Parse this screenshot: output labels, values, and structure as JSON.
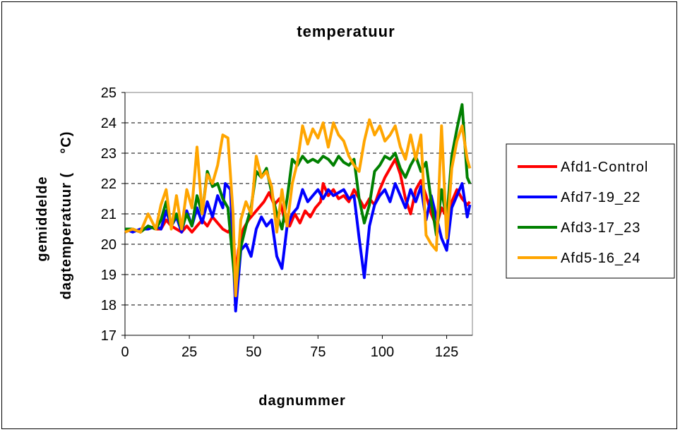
{
  "chart_data": {
    "type": "line",
    "title": "temperatuur",
    "xlabel": "dagnummer",
    "ylabel_line1": "gemiddelde",
    "ylabel_line2": "dagtemperatuur (    °C)",
    "xlim": [
      0,
      135
    ],
    "ylim": [
      17,
      25
    ],
    "xticks": [
      0,
      25,
      50,
      75,
      100,
      125
    ],
    "yticks": [
      17,
      18,
      19,
      20,
      21,
      22,
      23,
      24,
      25
    ],
    "grid": "horizontal dashed",
    "legend_position": "right",
    "series": [
      {
        "name": "Afd1-Control",
        "color": "#ff0000",
        "points": [
          [
            0,
            20.4
          ],
          [
            3,
            20.5
          ],
          [
            6,
            20.4
          ],
          [
            9,
            20.6
          ],
          [
            12,
            20.5
          ],
          [
            14,
            20.5
          ],
          [
            16,
            20.8
          ],
          [
            18,
            20.6
          ],
          [
            20,
            20.5
          ],
          [
            22,
            20.4
          ],
          [
            24,
            20.6
          ],
          [
            26,
            20.4
          ],
          [
            28,
            20.6
          ],
          [
            30,
            20.8
          ],
          [
            32,
            20.6
          ],
          [
            34,
            20.9
          ],
          [
            36,
            20.7
          ],
          [
            38,
            20.5
          ],
          [
            40,
            20.4
          ],
          [
            42,
            20.6
          ],
          [
            43,
            18.9
          ],
          [
            44,
            19.8
          ],
          [
            46,
            20.5
          ],
          [
            48,
            20.8
          ],
          [
            50,
            21.0
          ],
          [
            52,
            21.2
          ],
          [
            54,
            21.4
          ],
          [
            56,
            21.7
          ],
          [
            58,
            21.3
          ],
          [
            60,
            21.5
          ],
          [
            62,
            20.8
          ],
          [
            64,
            20.6
          ],
          [
            66,
            21.0
          ],
          [
            68,
            20.7
          ],
          [
            70,
            21.1
          ],
          [
            72,
            20.9
          ],
          [
            74,
            21.2
          ],
          [
            76,
            21.4
          ],
          [
            77,
            22.0
          ],
          [
            79,
            21.6
          ],
          [
            81,
            21.8
          ],
          [
            83,
            21.5
          ],
          [
            85,
            21.6
          ],
          [
            87,
            21.4
          ],
          [
            89,
            21.8
          ],
          [
            91,
            21.5
          ],
          [
            93,
            21.2
          ],
          [
            95,
            21.5
          ],
          [
            97,
            21.3
          ],
          [
            99,
            21.8
          ],
          [
            101,
            22.2
          ],
          [
            103,
            22.5
          ],
          [
            105,
            22.8
          ],
          [
            107,
            22.3
          ],
          [
            109,
            21.5
          ],
          [
            111,
            21.0
          ],
          [
            113,
            21.8
          ],
          [
            115,
            22.1
          ],
          [
            117,
            21.6
          ],
          [
            119,
            21.0
          ],
          [
            121,
            20.6
          ],
          [
            123,
            21.2
          ],
          [
            125,
            20.9
          ],
          [
            127,
            21.4
          ],
          [
            129,
            21.8
          ],
          [
            131,
            21.5
          ],
          [
            133,
            21.3
          ],
          [
            134,
            21.4
          ]
        ]
      },
      {
        "name": "Afd7-19_22",
        "color": "#0000ff",
        "points": [
          [
            0,
            20.5
          ],
          [
            3,
            20.4
          ],
          [
            6,
            20.5
          ],
          [
            9,
            20.5
          ],
          [
            12,
            20.6
          ],
          [
            14,
            20.5
          ],
          [
            16,
            21.1
          ],
          [
            18,
            20.6
          ],
          [
            20,
            20.9
          ],
          [
            22,
            20.4
          ],
          [
            24,
            21.1
          ],
          [
            26,
            20.6
          ],
          [
            28,
            21.2
          ],
          [
            30,
            20.7
          ],
          [
            32,
            21.4
          ],
          [
            34,
            20.9
          ],
          [
            36,
            21.6
          ],
          [
            38,
            21.2
          ],
          [
            39,
            22.0
          ],
          [
            41,
            21.8
          ],
          [
            43,
            17.8
          ],
          [
            45,
            19.8
          ],
          [
            47,
            20.0
          ],
          [
            49,
            19.6
          ],
          [
            51,
            20.5
          ],
          [
            53,
            20.9
          ],
          [
            55,
            20.6
          ],
          [
            57,
            20.8
          ],
          [
            59,
            19.6
          ],
          [
            61,
            19.2
          ],
          [
            63,
            20.6
          ],
          [
            65,
            21.0
          ],
          [
            67,
            21.2
          ],
          [
            69,
            21.8
          ],
          [
            71,
            21.4
          ],
          [
            73,
            21.6
          ],
          [
            75,
            21.8
          ],
          [
            77,
            21.5
          ],
          [
            79,
            21.8
          ],
          [
            81,
            21.6
          ],
          [
            83,
            21.7
          ],
          [
            85,
            21.8
          ],
          [
            87,
            21.5
          ],
          [
            89,
            21.6
          ],
          [
            91,
            20.2
          ],
          [
            93,
            18.9
          ],
          [
            95,
            20.6
          ],
          [
            97,
            21.3
          ],
          [
            99,
            21.6
          ],
          [
            101,
            21.8
          ],
          [
            103,
            21.4
          ],
          [
            105,
            22.0
          ],
          [
            107,
            21.6
          ],
          [
            109,
            21.2
          ],
          [
            111,
            21.8
          ],
          [
            113,
            21.4
          ],
          [
            115,
            21.9
          ],
          [
            117,
            20.8
          ],
          [
            119,
            21.6
          ],
          [
            121,
            20.9
          ],
          [
            123,
            20.2
          ],
          [
            125,
            19.8
          ],
          [
            127,
            21.2
          ],
          [
            129,
            21.6
          ],
          [
            131,
            22.0
          ],
          [
            133,
            20.9
          ],
          [
            134,
            21.3
          ]
        ]
      },
      {
        "name": "Afd3-17_23",
        "color": "#008000",
        "points": [
          [
            0,
            20.5
          ],
          [
            3,
            20.5
          ],
          [
            6,
            20.4
          ],
          [
            9,
            20.6
          ],
          [
            12,
            20.5
          ],
          [
            14,
            20.8
          ],
          [
            16,
            21.4
          ],
          [
            18,
            20.6
          ],
          [
            20,
            21.0
          ],
          [
            22,
            20.5
          ],
          [
            24,
            21.0
          ],
          [
            26,
            20.6
          ],
          [
            28,
            21.6
          ],
          [
            30,
            21.0
          ],
          [
            32,
            22.4
          ],
          [
            34,
            21.9
          ],
          [
            36,
            22.0
          ],
          [
            38,
            21.5
          ],
          [
            40,
            21.2
          ],
          [
            43,
            18.5
          ],
          [
            45,
            19.9
          ],
          [
            47,
            20.6
          ],
          [
            49,
            21.2
          ],
          [
            51,
            22.4
          ],
          [
            53,
            22.2
          ],
          [
            55,
            22.5
          ],
          [
            57,
            21.7
          ],
          [
            59,
            21.0
          ],
          [
            61,
            20.5
          ],
          [
            63,
            21.5
          ],
          [
            65,
            22.8
          ],
          [
            67,
            22.6
          ],
          [
            69,
            22.9
          ],
          [
            71,
            22.7
          ],
          [
            73,
            22.8
          ],
          [
            75,
            22.7
          ],
          [
            77,
            22.9
          ],
          [
            79,
            22.8
          ],
          [
            81,
            22.6
          ],
          [
            83,
            22.9
          ],
          [
            85,
            22.7
          ],
          [
            87,
            22.6
          ],
          [
            89,
            22.8
          ],
          [
            91,
            21.5
          ],
          [
            93,
            20.7
          ],
          [
            95,
            21.3
          ],
          [
            97,
            22.4
          ],
          [
            99,
            22.6
          ],
          [
            101,
            22.9
          ],
          [
            103,
            22.8
          ],
          [
            105,
            23.0
          ],
          [
            107,
            22.5
          ],
          [
            109,
            22.2
          ],
          [
            111,
            22.6
          ],
          [
            113,
            22.9
          ],
          [
            115,
            22.4
          ],
          [
            117,
            22.7
          ],
          [
            119,
            21.4
          ],
          [
            121,
            20.3
          ],
          [
            123,
            21.8
          ],
          [
            125,
            20.8
          ],
          [
            127,
            22.9
          ],
          [
            129,
            23.8
          ],
          [
            131,
            24.6
          ],
          [
            133,
            22.2
          ],
          [
            134,
            22.0
          ]
        ]
      },
      {
        "name": "Afd5-16_24",
        "color": "#ffa500",
        "points": [
          [
            0,
            20.4
          ],
          [
            3,
            20.5
          ],
          [
            6,
            20.4
          ],
          [
            9,
            21.0
          ],
          [
            12,
            20.5
          ],
          [
            14,
            21.3
          ],
          [
            16,
            21.8
          ],
          [
            18,
            20.5
          ],
          [
            20,
            21.6
          ],
          [
            22,
            20.5
          ],
          [
            24,
            21.8
          ],
          [
            26,
            21.2
          ],
          [
            28,
            23.2
          ],
          [
            30,
            21.0
          ],
          [
            32,
            22.3
          ],
          [
            34,
            22.0
          ],
          [
            36,
            22.6
          ],
          [
            38,
            23.6
          ],
          [
            40,
            23.5
          ],
          [
            42,
            21.0
          ],
          [
            43,
            18.3
          ],
          [
            45,
            20.8
          ],
          [
            47,
            21.4
          ],
          [
            49,
            21.0
          ],
          [
            51,
            22.9
          ],
          [
            53,
            22.2
          ],
          [
            55,
            22.4
          ],
          [
            57,
            21.9
          ],
          [
            59,
            20.4
          ],
          [
            61,
            21.8
          ],
          [
            63,
            20.6
          ],
          [
            65,
            22.0
          ],
          [
            67,
            22.7
          ],
          [
            69,
            23.9
          ],
          [
            71,
            23.3
          ],
          [
            73,
            23.8
          ],
          [
            75,
            23.5
          ],
          [
            77,
            24.0
          ],
          [
            79,
            23.2
          ],
          [
            81,
            24.0
          ],
          [
            83,
            23.6
          ],
          [
            85,
            23.4
          ],
          [
            87,
            22.9
          ],
          [
            89,
            22.6
          ],
          [
            91,
            22.4
          ],
          [
            93,
            23.4
          ],
          [
            95,
            24.1
          ],
          [
            97,
            23.6
          ],
          [
            99,
            23.9
          ],
          [
            101,
            23.4
          ],
          [
            103,
            23.6
          ],
          [
            105,
            23.9
          ],
          [
            107,
            23.2
          ],
          [
            109,
            22.8
          ],
          [
            111,
            23.6
          ],
          [
            113,
            22.8
          ],
          [
            115,
            23.6
          ],
          [
            117,
            20.3
          ],
          [
            119,
            20.0
          ],
          [
            121,
            19.8
          ],
          [
            123,
            23.9
          ],
          [
            125,
            20.2
          ],
          [
            127,
            22.5
          ],
          [
            129,
            23.4
          ],
          [
            131,
            23.9
          ],
          [
            133,
            22.8
          ],
          [
            134,
            22.5
          ]
        ]
      }
    ]
  }
}
